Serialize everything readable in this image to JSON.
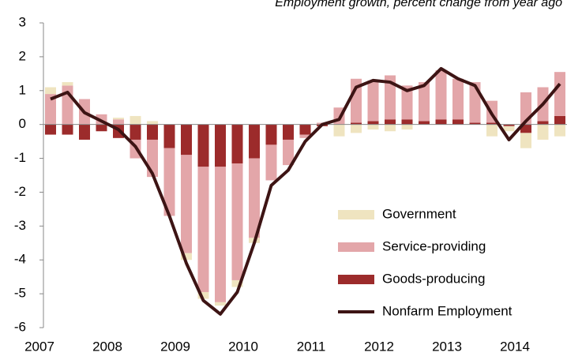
{
  "chart_data": {
    "type": "stacked-bar-line",
    "title": "Employment growth, percent change from year ago",
    "categories": [
      "2007",
      null,
      null,
      null,
      "2008",
      null,
      null,
      null,
      "2009",
      null,
      null,
      null,
      "2010",
      null,
      null,
      null,
      "2011",
      null,
      null,
      null,
      "2012",
      null,
      null,
      null,
      "2013",
      null,
      null,
      null,
      "2014",
      null,
      null
    ],
    "series": [
      {
        "name": "Government",
        "color": "#efe4c0",
        "kind": "bar",
        "values": [
          0.2,
          0.1,
          0,
          0,
          0.05,
          0.25,
          0.1,
          0,
          -0.2,
          -0.2,
          -0.1,
          -0.2,
          -0.15,
          0,
          0,
          0,
          0,
          -0.35,
          -0.25,
          -0.15,
          -0.2,
          -0.15,
          0,
          0,
          0,
          0,
          -0.35,
          -0.15,
          -0.45,
          -0.45,
          -0.35
        ]
      },
      {
        "name": "Service-providing",
        "color": "#e3a6a9",
        "kind": "bar",
        "values": [
          0.9,
          1.15,
          0.75,
          0.3,
          0.15,
          -0.55,
          -1.1,
          -2.0,
          -2.9,
          -3.7,
          -4.0,
          -3.45,
          -2.35,
          -1.05,
          -0.75,
          -0.1,
          0.05,
          0.5,
          1.3,
          1.2,
          1.3,
          1.0,
          1.15,
          1.45,
          1.2,
          1.2,
          0.65,
          0,
          0.95,
          1.0,
          1.3
        ]
      },
      {
        "name": "Goods-producing",
        "color": "#9c2b2b",
        "kind": "bar",
        "values": [
          -0.3,
          -0.3,
          -0.45,
          -0.2,
          -0.4,
          -0.45,
          -0.45,
          -0.7,
          -0.9,
          -1.25,
          -1.25,
          -1.15,
          -1.0,
          -0.6,
          -0.45,
          -0.3,
          -0.05,
          0,
          0.05,
          0.1,
          0.15,
          0.15,
          0.1,
          0.15,
          0.15,
          0.05,
          0.05,
          -0.05,
          -0.25,
          0.1,
          0.25
        ]
      },
      {
        "name": "Nonfarm Employment",
        "color": "#3d1414",
        "kind": "line",
        "values": [
          0.75,
          0.95,
          0.35,
          0.1,
          -0.15,
          -0.65,
          -1.45,
          -2.7,
          -4.1,
          -5.2,
          -5.6,
          -4.95,
          -3.5,
          -1.8,
          -1.35,
          -0.5,
          0.0,
          0.15,
          1.1,
          1.3,
          1.25,
          1.0,
          1.15,
          1.65,
          1.35,
          1.15,
          0.3,
          -0.45,
          0.1,
          0.6,
          1.2
        ]
      }
    ],
    "ylim": [
      -6,
      3
    ],
    "yticks": [
      3,
      2,
      1,
      0,
      -1,
      -2,
      -3,
      -4,
      -5,
      -6
    ],
    "legend": "lower right"
  }
}
